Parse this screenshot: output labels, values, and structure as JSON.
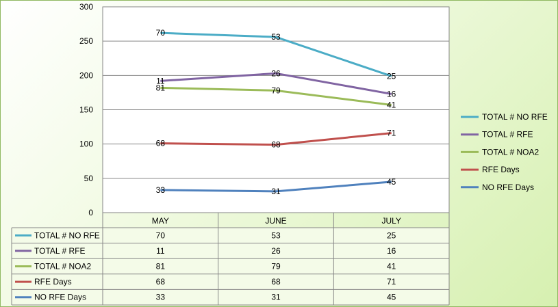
{
  "chart_data": {
    "type": "line",
    "categories": [
      "MAY",
      "JUNE",
      "JULY"
    ],
    "ylim": [
      0,
      300
    ],
    "yticks": [
      0,
      50,
      100,
      150,
      200,
      250,
      300
    ],
    "grid": true,
    "legend_position": "right",
    "data_table": true,
    "series": [
      {
        "name": "TOTAL # NO RFE",
        "color": "#4bacc6",
        "values": [
          262,
          256,
          199
        ],
        "labels": [
          "70",
          "53",
          "25"
        ]
      },
      {
        "name": "TOTAL # RFE",
        "color": "#8064a2",
        "values": [
          192,
          203,
          173
        ],
        "labels": [
          "11",
          "26",
          "16"
        ]
      },
      {
        "name": "TOTAL # NOA2",
        "color": "#9bbb59",
        "values": [
          182,
          178,
          157
        ],
        "labels": [
          "81",
          "79",
          "41"
        ]
      },
      {
        "name": "RFE Days",
        "color": "#c0504d",
        "values": [
          101,
          99,
          116
        ],
        "labels": [
          "68",
          "68",
          "71"
        ]
      },
      {
        "name": "NO RFE Days",
        "color": "#4f81bd",
        "values": [
          33,
          31,
          45
        ],
        "labels": [
          "33",
          "31",
          "45"
        ]
      }
    ]
  }
}
